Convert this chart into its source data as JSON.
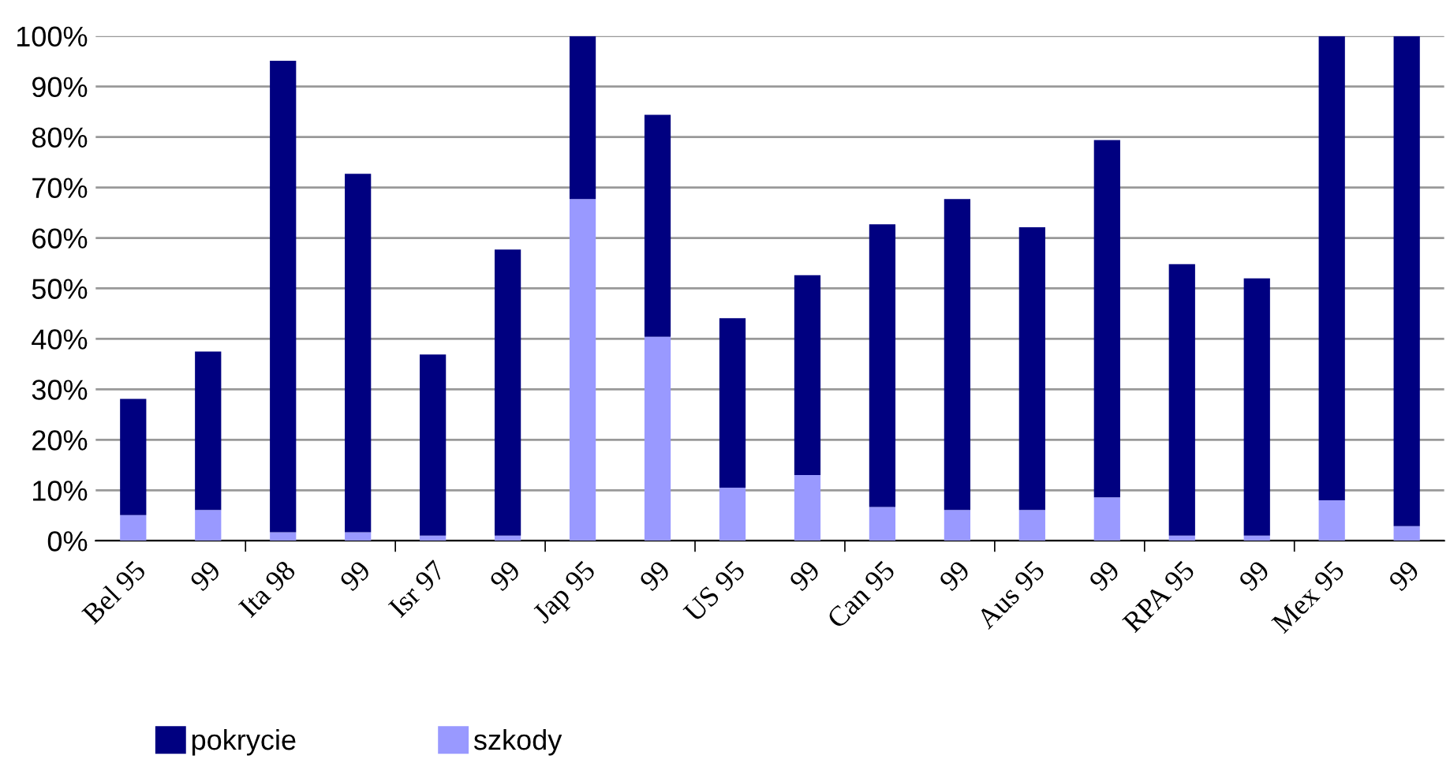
{
  "chart_data": {
    "type": "bar",
    "stacked": true,
    "categories": [
      "Bel 95",
      "99",
      "Ita 98",
      "99",
      "Isr 97",
      "99",
      "Jap 95",
      "99",
      "US 95",
      "99",
      "Can 95",
      "99",
      "Aus 95",
      "99",
      "RPA 95",
      "99",
      "Mex 95",
      "99"
    ],
    "series": [
      {
        "name": "szkody",
        "color": "#9999ff",
        "values": [
          5.1,
          6.1,
          1.7,
          1.7,
          1.0,
          1.0,
          67.7,
          40.4,
          10.5,
          13.0,
          6.7,
          6.1,
          6.1,
          8.6,
          1.0,
          1.0,
          8.0,
          2.9
        ]
      },
      {
        "name": "pokrycie",
        "color": "#000080",
        "values": [
          23.0,
          31.4,
          93.4,
          71.0,
          35.9,
          56.7,
          32.3,
          44.0,
          33.6,
          39.6,
          56.0,
          61.6,
          56.0,
          70.8,
          53.8,
          51.0,
          92.0,
          97.1
        ]
      }
    ],
    "ylim": [
      0,
      100
    ],
    "yticks": [
      {
        "value": 0,
        "label": "0%"
      },
      {
        "value": 10,
        "label": "10%"
      },
      {
        "value": 20,
        "label": "20%"
      },
      {
        "value": 30,
        "label": "30%"
      },
      {
        "value": 40,
        "label": "40%"
      },
      {
        "value": 50,
        "label": "50%"
      },
      {
        "value": 60,
        "label": "60%"
      },
      {
        "value": 70,
        "label": "70%"
      },
      {
        "value": 80,
        "label": "80%"
      },
      {
        "value": 90,
        "label": "90%"
      },
      {
        "value": 100,
        "label": "100%"
      }
    ],
    "grid": "y",
    "legend": "bottom left"
  }
}
